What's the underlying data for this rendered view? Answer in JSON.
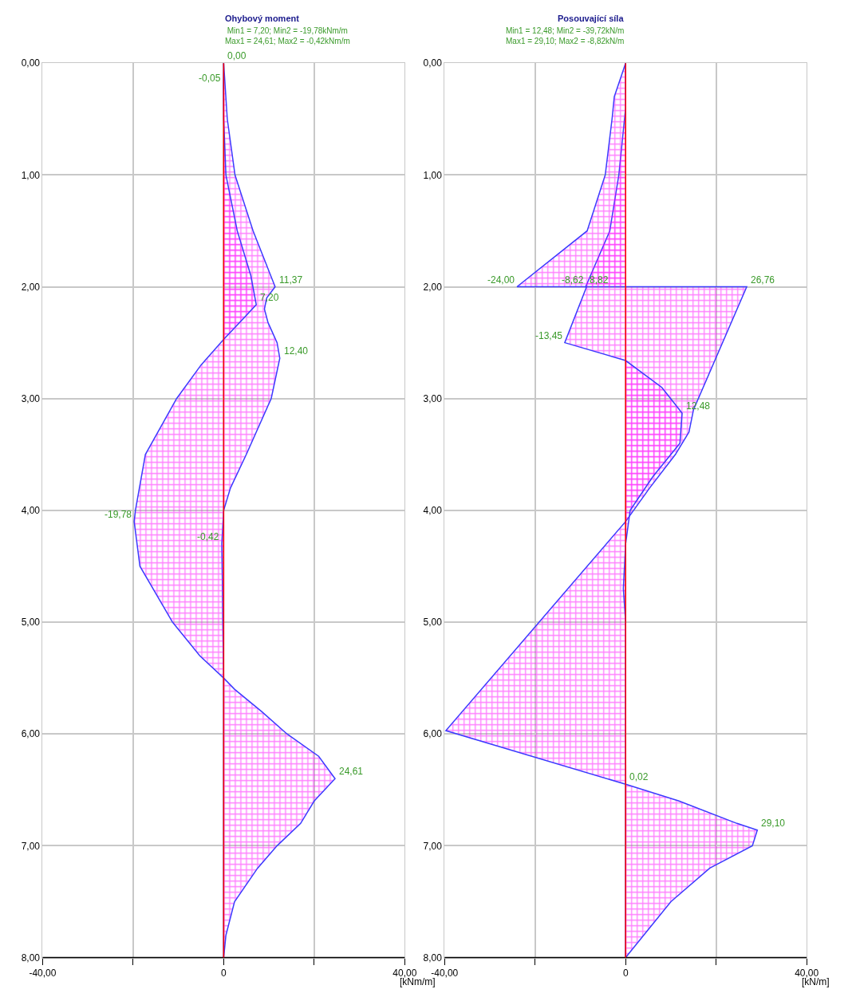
{
  "chart_data": [
    {
      "type": "area",
      "title": "Ohybový moment",
      "subtitle": "Min1 = 7,20; Min2 = -19,78kNm/m\nMax1 = 24,61; Max2 = -0,42kNm/m",
      "xlabel": "[kNm/m]",
      "series": [
        {
          "color": "#3b3bff",
          "x": [
            0,
            0.8,
            2.5,
            6.5,
            11.37,
            9.5,
            9.0,
            9.8,
            11.8,
            12.4,
            10.5,
            5,
            1.5,
            0,
            -0.42,
            -0.3,
            -0.2,
            0,
            2.4,
            8.4,
            14,
            21,
            24.61,
            20,
            17,
            11.8,
            7.5,
            2.4,
            0.5,
            0
          ],
          "values": [
            0,
            0.5,
            1.0,
            1.5,
            2.0,
            2.1,
            2.2,
            2.32,
            2.5,
            2.64,
            3.0,
            3.5,
            3.8,
            4.0,
            4.3,
            4.6,
            5.0,
            5.5,
            5.6,
            5.8,
            6.0,
            6.2,
            6.4,
            6.6,
            6.8,
            7.0,
            7.2,
            7.5,
            7.8,
            8.0
          ]
        },
        {
          "color": "#3b3bff",
          "x": [
            0,
            -0.05,
            0,
            0.5,
            3,
            6,
            7.2,
            4,
            0,
            -5,
            -10.4,
            -17.3,
            -19.5,
            -19.78,
            -18.5,
            -11.3,
            -5.3,
            0,
            0,
            0
          ],
          "values": [
            0,
            0.2,
            0.5,
            1.0,
            1.5,
            1.9,
            2.16,
            2.3,
            2.47,
            2.7,
            3.0,
            3.5,
            4.0,
            4.1,
            4.5,
            5.0,
            5.3,
            5.5,
            6.0,
            8.0
          ]
        }
      ],
      "xlim": [
        -40,
        40
      ],
      "ylim": [
        8,
        0
      ],
      "xticks": [
        {
          "value": -40,
          "label": "-40,00"
        },
        {
          "value": -20,
          "label": null
        },
        {
          "value": 0,
          "label": "0"
        },
        {
          "value": 20,
          "label": null
        },
        {
          "value": 40,
          "label": "40,00"
        }
      ],
      "yticks": [
        {
          "value": 0,
          "label": "0,00"
        },
        {
          "value": 1,
          "label": "1,00"
        },
        {
          "value": 2,
          "label": "2,00"
        },
        {
          "value": 3,
          "label": "3,00"
        },
        {
          "value": 4,
          "label": "4,00"
        },
        {
          "value": 5,
          "label": "5,00"
        },
        {
          "value": 6,
          "label": "6,00"
        },
        {
          "value": 7,
          "label": "7,00"
        },
        {
          "value": 8,
          "label": "8,00"
        }
      ],
      "grid": true,
      "ref_lines": [
        {
          "axis": "x",
          "value": 0,
          "color": "#ff0000"
        }
      ],
      "annotations": [
        {
          "text": "0,00",
          "x": 0,
          "y": 0
        },
        {
          "text": "-0,05",
          "x": -0.05,
          "y": 0.2
        },
        {
          "text": "11,37",
          "x": 11.37,
          "y": 2.0
        },
        {
          "text": "7,20",
          "x": 7.2,
          "y": 2.16
        },
        {
          "text": "12,40",
          "x": 12.4,
          "y": 2.64
        },
        {
          "text": "-19,78",
          "x": -19.78,
          "y": 4.1
        },
        {
          "text": "-0,42",
          "x": -0.42,
          "y": 4.3
        },
        {
          "text": "24,61",
          "x": 24.61,
          "y": 6.4
        }
      ]
    },
    {
      "type": "area",
      "title": "Posouvající síla",
      "subtitle": "Min1 = 12,48; Min2 = -39,72kN/m\nMax1 = 29,10; Max2 = -8,82kN/m",
      "xlabel": "[kN/m]",
      "series": [
        {
          "color": "#3b3bff",
          "x": [
            0,
            0,
            -1.5,
            -3.5,
            -8.82,
            26.76,
            15,
            14,
            11,
            5.3,
            0,
            -39.72,
            0.02,
            11.8,
            24.6,
            29.1,
            28,
            18.6,
            10,
            4,
            0
          ],
          "values": [
            0,
            0.4,
            1.0,
            1.5,
            2.0,
            2.0,
            3.1,
            3.3,
            3.5,
            3.8,
            4.1,
            5.97,
            6.45,
            6.6,
            6.8,
            6.86,
            7.0,
            7.2,
            7.5,
            7.8,
            8.0
          ]
        },
        {
          "color": "#3b3bff",
          "x": [
            0,
            -2.5,
            -3,
            -4.5,
            -8.5,
            -24,
            -8.62,
            -13.45,
            0,
            8,
            12.48,
            12,
            6,
            1,
            0,
            -0.5,
            0,
            0,
            0.02,
            0
          ],
          "values": [
            0,
            0.3,
            0.5,
            1.0,
            1.5,
            2.0,
            2.0,
            2.5,
            2.66,
            2.9,
            3.13,
            3.4,
            3.7,
            4.0,
            4.3,
            4.7,
            5.0,
            6.0,
            6.45,
            8.0
          ]
        }
      ],
      "xlim": [
        -40,
        40
      ],
      "ylim": [
        8,
        0
      ],
      "xticks": [
        {
          "value": -40,
          "label": "-40,00"
        },
        {
          "value": -20,
          "label": null
        },
        {
          "value": 0,
          "label": "0"
        },
        {
          "value": 20,
          "label": null
        },
        {
          "value": 40,
          "label": "40,00"
        }
      ],
      "yticks": [
        {
          "value": 0,
          "label": "0,00"
        },
        {
          "value": 1,
          "label": "1,00"
        },
        {
          "value": 2,
          "label": "2,00"
        },
        {
          "value": 3,
          "label": "3,00"
        },
        {
          "value": 4,
          "label": "4,00"
        },
        {
          "value": 5,
          "label": "5,00"
        },
        {
          "value": 6,
          "label": "6,00"
        },
        {
          "value": 7,
          "label": "7,00"
        },
        {
          "value": 8,
          "label": "8,00"
        }
      ],
      "grid": true,
      "ref_lines": [
        {
          "axis": "x",
          "value": 0,
          "color": "#ff0000"
        }
      ],
      "annotations": [
        {
          "text": "-24,00",
          "x": -24,
          "y": 2.0
        },
        {
          "text": "-8,62",
          "x": -8.62,
          "y": 2.0
        },
        {
          "text": "8,82",
          "x": -8.82,
          "y": 2.0
        },
        {
          "text": "26,76",
          "x": 26.76,
          "y": 2.0
        },
        {
          "text": "-13,45",
          "x": -13.45,
          "y": 2.5
        },
        {
          "text": "12,48",
          "x": 12.48,
          "y": 3.13
        },
        {
          "text": "0,02",
          "x": 0.02,
          "y": 6.45
        },
        {
          "text": "29,10",
          "x": 29.1,
          "y": 6.86
        }
      ]
    }
  ]
}
